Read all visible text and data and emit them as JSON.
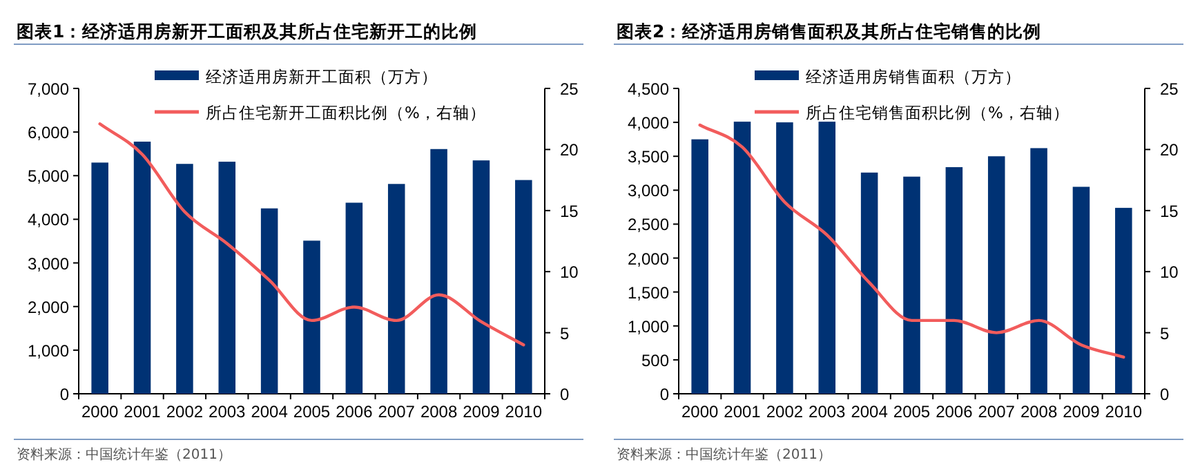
{
  "chart_data": [
    {
      "type": "bar",
      "title": "图表1：经济适用房新开工面积及其所占住宅新开工的比例",
      "categories": [
        "2000",
        "2001",
        "2002",
        "2003",
        "2004",
        "2005",
        "2006",
        "2007",
        "2008",
        "2009",
        "2010"
      ],
      "series": [
        {
          "name": "经济适用房新开工面积（万方）",
          "color": "#003274",
          "values": [
            5300,
            5780,
            5270,
            5320,
            4250,
            3510,
            4380,
            4810,
            5610,
            5350,
            4900
          ]
        },
        {
          "name": "所占住宅新开工面积比例（%，右轴）",
          "type": "line",
          "axis": "y2",
          "color": "#f25c5c",
          "values": [
            22.1,
            19.6,
            14.9,
            12.3,
            9.3,
            6.0,
            7.1,
            6.0,
            8.1,
            5.9,
            4.0
          ]
        }
      ],
      "ylim": [
        0,
        7000
      ],
      "yticks": [
        {
          "value": 0,
          "label": "0"
        },
        {
          "value": 1000,
          "label": "1,000"
        },
        {
          "value": 2000,
          "label": "2,000"
        },
        {
          "value": 3000,
          "label": "3,000"
        },
        {
          "value": 4000,
          "label": "4,000"
        },
        {
          "value": 5000,
          "label": "5,000"
        },
        {
          "value": 6000,
          "label": "6,000"
        },
        {
          "value": 7000,
          "label": "7,000"
        }
      ],
      "y2lim": [
        0,
        25
      ],
      "y2ticks": [
        0,
        5,
        10,
        15,
        20,
        25
      ],
      "legend": "top",
      "grid": false,
      "marker": "none",
      "annotations": [
        "资料来源：中国统计年鉴（2011）"
      ]
    },
    {
      "type": "bar",
      "title": "图表2：经济适用房销售面积及其所占住宅销售的比例",
      "categories": [
        "2000",
        "2001",
        "2002",
        "2003",
        "2004",
        "2005",
        "2006",
        "2007",
        "2008",
        "2009",
        "2010"
      ],
      "series": [
        {
          "name": "经济适用房销售面积（万方）",
          "color": "#003274",
          "values": [
            3750,
            4010,
            4000,
            4010,
            3260,
            3200,
            3340,
            3500,
            3620,
            3050,
            2740
          ]
        },
        {
          "name": "所占住宅销售面积比例（%，右轴）",
          "type": "line",
          "axis": "y2",
          "color": "#f25c5c",
          "values": [
            22.0,
            20.2,
            15.7,
            13.0,
            9.1,
            6.0,
            6.0,
            5.0,
            6.0,
            4.0,
            3.0
          ]
        }
      ],
      "ylim": [
        0,
        4500
      ],
      "yticks": [
        {
          "value": 0,
          "label": "0"
        },
        500,
        {
          "value": 1000,
          "label": "1,000"
        },
        {
          "value": 1500,
          "label": "1,500"
        },
        {
          "value": 2000,
          "label": "2,000"
        },
        {
          "value": 2500,
          "label": "2,500"
        },
        {
          "value": 3000,
          "label": "3,000"
        },
        {
          "value": 3500,
          "label": "3,500"
        },
        {
          "value": 4000,
          "label": "4,000"
        },
        {
          "value": 4500,
          "label": "4,500"
        }
      ],
      "y2lim": [
        0,
        25
      ],
      "y2ticks": [
        0,
        5,
        10,
        15,
        20,
        25
      ],
      "legend": "top",
      "grid": false,
      "marker": "none",
      "annotations": [
        "资料来源：中国统计年鉴（2011）"
      ]
    }
  ]
}
